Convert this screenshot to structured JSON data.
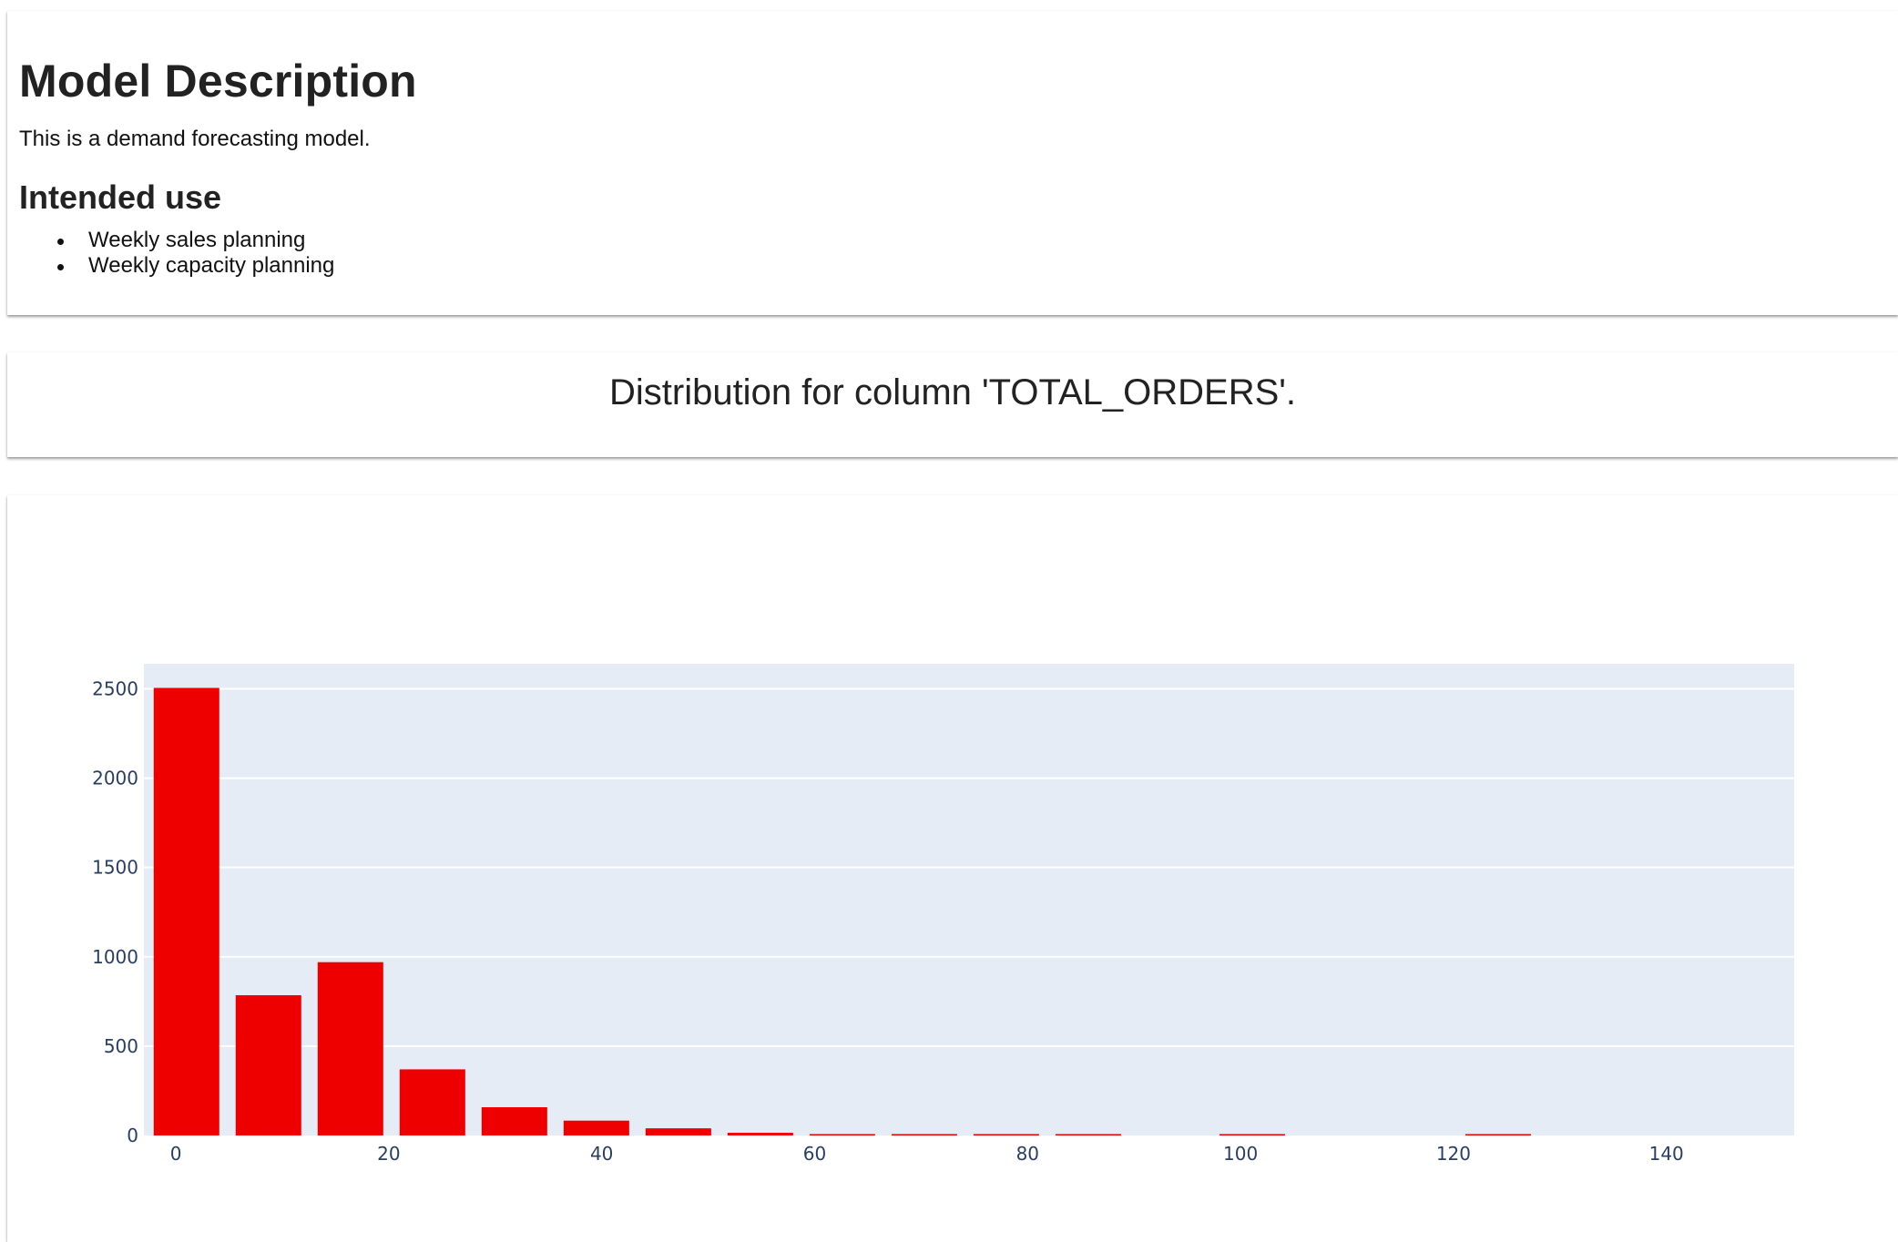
{
  "description": {
    "heading": "Model Description",
    "text": "This is a demand forecasting model.",
    "intended_use_heading": "Intended use",
    "intended_use_items": [
      "Weekly sales planning",
      "Weekly capacity planning"
    ]
  },
  "section": {
    "title": "Distribution for column 'TOTAL_ORDERS'."
  },
  "colors": {
    "bar": "#ee0000",
    "plot_background": "#e5ecf6",
    "grid": "#ffffff",
    "tick_text": "#2a3f5f"
  },
  "chart_data": {
    "type": "bar",
    "title": "",
    "xlabel": "",
    "ylabel": "",
    "xlim": [
      -3,
      152
    ],
    "ylim": [
      0,
      2640
    ],
    "x_ticks": [
      0,
      20,
      40,
      60,
      80,
      100,
      120,
      140
    ],
    "y_ticks": [
      0,
      500,
      1000,
      1500,
      2000,
      2500
    ],
    "grid": true,
    "legend": "none",
    "bin_width": 7.7,
    "bin_centers": [
      1,
      8.7,
      16.4,
      24.1,
      31.8,
      39.5,
      47.2,
      54.9,
      62.6,
      70.3,
      78,
      85.7,
      93.4,
      101.1,
      108.8,
      116.5,
      124.2,
      131.9,
      139.6,
      147.3
    ],
    "values": [
      2505,
      785,
      970,
      370,
      158,
      83,
      40,
      15,
      5,
      1,
      4,
      1,
      0,
      1,
      0,
      0,
      1,
      0,
      0,
      0
    ]
  }
}
